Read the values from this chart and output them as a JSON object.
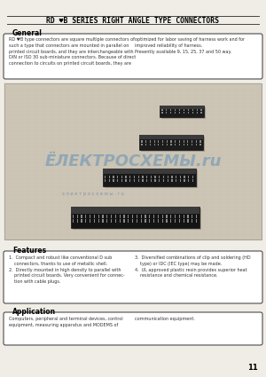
{
  "page_color": "#f0ede6",
  "title": "RD ♥B SERIES RIGHT ANGLE TYPE CONNECTORS",
  "general_heading": "General",
  "general_text_left": "RD ♥B type connectors are square multiple connectors of\nsuch a type that connectors are mounted in parallel on\nprinted circuit boards, and they are interchangeable with\nDIN or ISO 30 sub-miniature connectors. Because of direct\nconnection to circuits on printed circuit boards, they are",
  "general_text_right": "optimized for labor saving of harness work and for\nimproved reliability of harness.\nPresently available 9, 15, 25, 37 and 50 way.",
  "features_heading": "Features",
  "features_text_left": "1.  Compact and robust like conventional D sub\n    connectors, thanks to use of metallic shell.\n2.  Directly mounted in high density to parallel with\n    printed circuit boards. Very convenient for connec-\n    tion with cable plugs.",
  "features_text_right": "3.  Diversified combinations of clip and soldering (HD\n    type) or IDC (IEC type) may be made.\n4.  UL approved plastic resin provides superior heat\n    resistance and chemical resistance.",
  "application_heading": "Application",
  "application_text_left": "Computers, peripheral and terminal devices, control\nequipment, measuring apparatus and MODEMS of",
  "application_text_right": "communication equipment.",
  "page_number": "11",
  "line_color": "#444444",
  "box_border_color": "#333333",
  "text_color": "#333333",
  "heading_color": "#000000",
  "grid_color": "#c8c0b0",
  "grid_bg": "#ccc4b4",
  "watermark_text": "ЁЛЕКТРОСХЕМЫ.ru",
  "watermark_color_1": "#6090b8",
  "watermark_color_2": "#c8a030",
  "watermark_sub": "э л е к т р о с х е м ы . r u"
}
